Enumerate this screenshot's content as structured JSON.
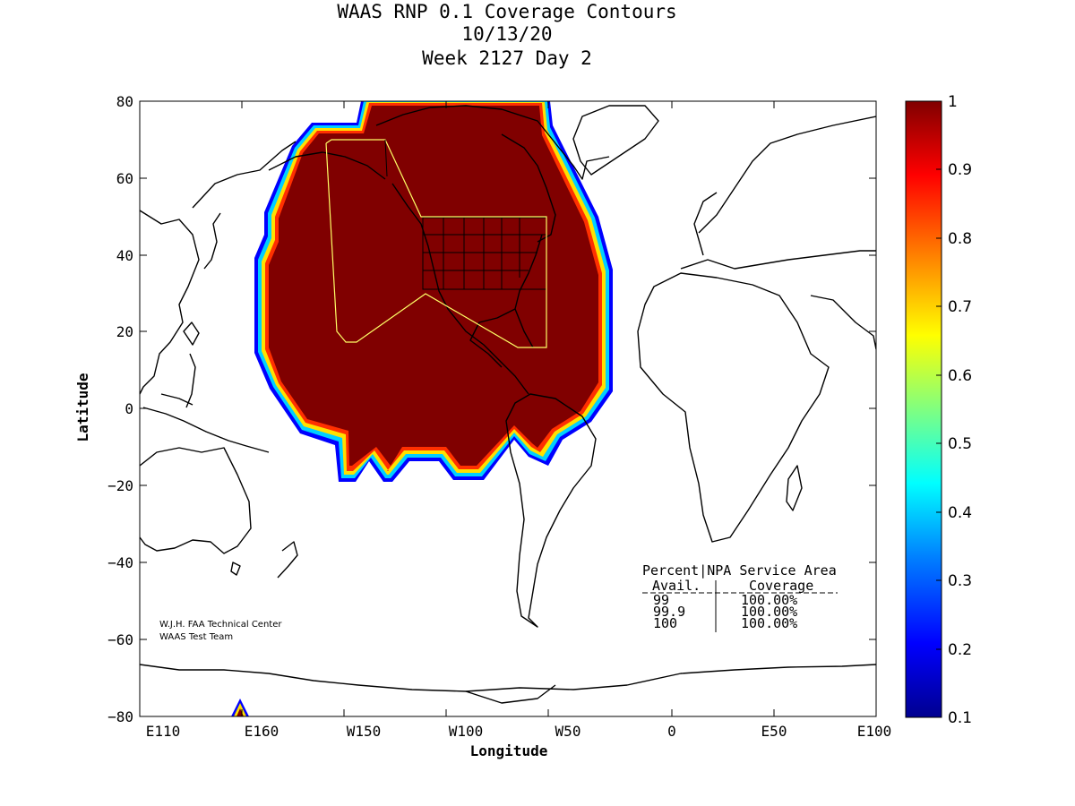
{
  "title": {
    "line1": "WAAS RNP 0.1 Coverage Contours",
    "line2": "10/13/20",
    "line3": "Week 2127 Day 2"
  },
  "axes": {
    "xlabel": "Longitude",
    "ylabel": "Latitude",
    "x_ticks": [
      "E110",
      "E160",
      "W150",
      "W100",
      "W50",
      "0",
      "E50",
      "E100"
    ],
    "y_ticks": [
      "80",
      "60",
      "40",
      "20",
      "0",
      "−20",
      "−40",
      "−60",
      "−80"
    ]
  },
  "colorbar": {
    "ticks": [
      "1",
      "0.9",
      "0.8",
      "0.7",
      "0.6",
      "0.5",
      "0.4",
      "0.3",
      "0.2",
      "0.1"
    ],
    "colors": [
      "#00008f",
      "#0000ff",
      "#0080ff",
      "#00ffff",
      "#80ff80",
      "#ffff00",
      "#ff8000",
      "#ff0000",
      "#800000"
    ]
  },
  "credit": {
    "line1": "W.J.H. FAA Technical Center",
    "line2": "WAAS Test Team"
  },
  "table": {
    "header1": "Percent|NPA Service Area",
    "header2a": "Avail.",
    "header2b": "Coverage",
    "rows": [
      {
        "avail": "99",
        "coverage": "100.00%"
      },
      {
        "avail": "99.9",
        "coverage": "100.00%"
      },
      {
        "avail": "100",
        "coverage": "100.00%"
      }
    ]
  },
  "coverage_color": "#800000",
  "service_area_color": "#ffff66"
}
